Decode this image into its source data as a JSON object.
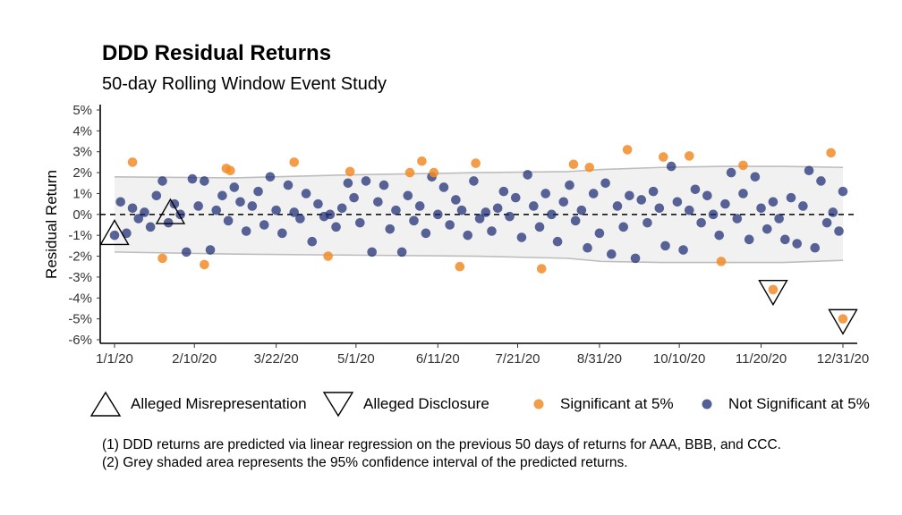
{
  "chart_data": {
    "type": "scatter",
    "title": "DDD Residual Returns",
    "subtitle": "50-day Rolling Window Event Study",
    "xlabel": "",
    "ylabel": "Residual Return",
    "x_ticks": [
      "1/1/20",
      "2/10/20",
      "3/22/20",
      "5/1/20",
      "6/11/20",
      "7/21/20",
      "8/31/20",
      "10/10/20",
      "11/20/20",
      "12/31/20"
    ],
    "y_ticks": [
      "5%",
      "4%",
      "3%",
      "2%",
      "1%",
      "0%",
      "-1%",
      "-2%",
      "-3%",
      "-4%",
      "-5%",
      "-6%"
    ],
    "x_range": [
      "2020-01-01",
      "2020-12-31"
    ],
    "ylim": [
      -6,
      5
    ],
    "grid": false,
    "legend": [
      {
        "name": "Alleged Misrepresentation",
        "marker": "triangle-up"
      },
      {
        "name": "Alleged Disclosure",
        "marker": "triangle-down"
      },
      {
        "name": "Significant at 5%",
        "marker": "dot",
        "color": "#f28c28"
      },
      {
        "name": "Not Significant at 5%",
        "marker": "dot",
        "color": "#1b2a73"
      }
    ],
    "confidence_band": {
      "dates": [
        "2020-01-01",
        "2020-03-01",
        "2020-05-01",
        "2020-07-01",
        "2020-08-15",
        "2020-09-01",
        "2020-10-01",
        "2020-11-01",
        "2020-12-01",
        "2020-12-31"
      ],
      "upper": [
        1.8,
        1.75,
        1.9,
        2.0,
        2.05,
        2.15,
        2.25,
        2.3,
        2.3,
        2.25
      ],
      "lower": [
        -1.8,
        -1.9,
        -1.95,
        -2.0,
        -2.1,
        -2.25,
        -2.3,
        -2.3,
        -2.3,
        -2.2
      ]
    },
    "series": [
      {
        "name": "Significant at 5%",
        "points": [
          [
            "2020-01-10",
            2.5
          ],
          [
            "2020-01-25",
            -2.1
          ],
          [
            "2020-02-15",
            -2.4
          ],
          [
            "2020-02-26",
            2.2
          ],
          [
            "2020-02-28",
            2.1
          ],
          [
            "2020-03-31",
            2.5
          ],
          [
            "2020-04-17",
            -2.0
          ],
          [
            "2020-04-28",
            2.05
          ],
          [
            "2020-05-28",
            2.0
          ],
          [
            "2020-06-03",
            2.55
          ],
          [
            "2020-06-09",
            2.0
          ],
          [
            "2020-06-22",
            -2.5
          ],
          [
            "2020-06-30",
            2.45
          ],
          [
            "2020-08-02",
            -2.6
          ],
          [
            "2020-08-18",
            2.4
          ],
          [
            "2020-08-26",
            2.25
          ],
          [
            "2020-09-14",
            3.1
          ],
          [
            "2020-10-02",
            2.75
          ],
          [
            "2020-10-15",
            2.8
          ],
          [
            "2020-10-31",
            -2.25
          ],
          [
            "2020-11-11",
            2.35
          ],
          [
            "2020-11-26",
            -3.6
          ],
          [
            "2020-12-25",
            2.95
          ],
          [
            "2020-12-31",
            -5.0
          ]
        ]
      },
      {
        "name": "Not Significant at 5%",
        "points": [
          [
            "2020-01-01",
            -1.0
          ],
          [
            "2020-01-04",
            0.6
          ],
          [
            "2020-01-07",
            -0.9
          ],
          [
            "2020-01-10",
            0.3
          ],
          [
            "2020-01-13",
            -0.2
          ],
          [
            "2020-01-16",
            0.1
          ],
          [
            "2020-01-19",
            -0.6
          ],
          [
            "2020-01-22",
            0.9
          ],
          [
            "2020-01-25",
            1.6
          ],
          [
            "2020-01-28",
            -0.4
          ],
          [
            "2020-01-31",
            0.5
          ],
          [
            "2020-02-03",
            0.0
          ],
          [
            "2020-02-06",
            -1.8
          ],
          [
            "2020-02-09",
            1.7
          ],
          [
            "2020-02-12",
            0.4
          ],
          [
            "2020-02-15",
            1.6
          ],
          [
            "2020-02-18",
            -1.7
          ],
          [
            "2020-02-21",
            0.2
          ],
          [
            "2020-02-24",
            0.9
          ],
          [
            "2020-02-27",
            -0.3
          ],
          [
            "2020-03-01",
            1.3
          ],
          [
            "2020-03-04",
            0.6
          ],
          [
            "2020-03-07",
            -0.8
          ],
          [
            "2020-03-10",
            0.4
          ],
          [
            "2020-03-13",
            1.1
          ],
          [
            "2020-03-16",
            -0.5
          ],
          [
            "2020-03-19",
            1.8
          ],
          [
            "2020-03-22",
            0.2
          ],
          [
            "2020-03-25",
            -0.9
          ],
          [
            "2020-03-28",
            1.4
          ],
          [
            "2020-03-31",
            0.1
          ],
          [
            "2020-04-03",
            -0.2
          ],
          [
            "2020-04-06",
            1.0
          ],
          [
            "2020-04-09",
            -1.3
          ],
          [
            "2020-04-12",
            0.5
          ],
          [
            "2020-04-15",
            -0.1
          ],
          [
            "2020-04-18",
            0.0
          ],
          [
            "2020-04-21",
            -0.6
          ],
          [
            "2020-04-24",
            0.3
          ],
          [
            "2020-04-27",
            1.5
          ],
          [
            "2020-04-30",
            0.8
          ],
          [
            "2020-05-03",
            -0.4
          ],
          [
            "2020-05-06",
            1.6
          ],
          [
            "2020-05-09",
            -1.8
          ],
          [
            "2020-05-12",
            0.6
          ],
          [
            "2020-05-15",
            1.4
          ],
          [
            "2020-05-18",
            -0.7
          ],
          [
            "2020-05-21",
            0.2
          ],
          [
            "2020-05-24",
            -1.8
          ],
          [
            "2020-05-27",
            0.9
          ],
          [
            "2020-05-30",
            -0.3
          ],
          [
            "2020-06-02",
            0.4
          ],
          [
            "2020-06-05",
            -0.9
          ],
          [
            "2020-06-08",
            1.8
          ],
          [
            "2020-06-11",
            0.0
          ],
          [
            "2020-06-14",
            1.3
          ],
          [
            "2020-06-17",
            -0.5
          ],
          [
            "2020-06-20",
            0.7
          ],
          [
            "2020-06-23",
            0.2
          ],
          [
            "2020-06-26",
            -1.0
          ],
          [
            "2020-06-29",
            1.6
          ],
          [
            "2020-07-02",
            -0.2
          ],
          [
            "2020-07-05",
            0.1
          ],
          [
            "2020-07-08",
            -0.8
          ],
          [
            "2020-07-11",
            0.3
          ],
          [
            "2020-07-14",
            1.1
          ],
          [
            "2020-07-17",
            -0.1
          ],
          [
            "2020-07-20",
            0.8
          ],
          [
            "2020-07-23",
            -1.1
          ],
          [
            "2020-07-26",
            1.9
          ],
          [
            "2020-07-29",
            0.4
          ],
          [
            "2020-08-01",
            -0.6
          ],
          [
            "2020-08-04",
            1.0
          ],
          [
            "2020-08-07",
            0.0
          ],
          [
            "2020-08-10",
            -1.3
          ],
          [
            "2020-08-13",
            0.6
          ],
          [
            "2020-08-16",
            1.4
          ],
          [
            "2020-08-19",
            -0.3
          ],
          [
            "2020-08-22",
            0.2
          ],
          [
            "2020-08-25",
            -1.6
          ],
          [
            "2020-08-28",
            1.0
          ],
          [
            "2020-08-31",
            -0.9
          ],
          [
            "2020-09-03",
            1.5
          ],
          [
            "2020-09-06",
            -1.9
          ],
          [
            "2020-09-09",
            0.4
          ],
          [
            "2020-09-12",
            -0.6
          ],
          [
            "2020-09-15",
            0.9
          ],
          [
            "2020-09-18",
            -2.1
          ],
          [
            "2020-09-21",
            0.7
          ],
          [
            "2020-09-24",
            -0.4
          ],
          [
            "2020-09-27",
            1.1
          ],
          [
            "2020-09-30",
            0.3
          ],
          [
            "2020-10-03",
            -1.5
          ],
          [
            "2020-10-06",
            2.3
          ],
          [
            "2020-10-09",
            0.6
          ],
          [
            "2020-10-12",
            -1.7
          ],
          [
            "2020-10-15",
            0.2
          ],
          [
            "2020-10-18",
            1.2
          ],
          [
            "2020-10-21",
            -0.4
          ],
          [
            "2020-10-24",
            0.9
          ],
          [
            "2020-10-27",
            0.0
          ],
          [
            "2020-10-30",
            -1.0
          ],
          [
            "2020-11-02",
            0.5
          ],
          [
            "2020-11-05",
            2.0
          ],
          [
            "2020-11-08",
            -0.2
          ],
          [
            "2020-11-11",
            1.0
          ],
          [
            "2020-11-14",
            -1.2
          ],
          [
            "2020-11-17",
            1.8
          ],
          [
            "2020-11-20",
            0.3
          ],
          [
            "2020-11-23",
            -0.7
          ],
          [
            "2020-11-26",
            0.6
          ],
          [
            "2020-11-29",
            -0.2
          ],
          [
            "2020-12-02",
            -1.2
          ],
          [
            "2020-12-05",
            0.8
          ],
          [
            "2020-12-08",
            -1.4
          ],
          [
            "2020-12-11",
            0.4
          ],
          [
            "2020-12-14",
            2.1
          ],
          [
            "2020-12-17",
            -1.6
          ],
          [
            "2020-12-20",
            1.6
          ],
          [
            "2020-12-23",
            -0.4
          ],
          [
            "2020-12-26",
            0.1
          ],
          [
            "2020-12-29",
            -0.8
          ],
          [
            "2020-12-31",
            1.1
          ]
        ]
      }
    ],
    "event_markers": [
      {
        "type": "Alleged Misrepresentation",
        "date": "2020-01-01",
        "y": -1.0
      },
      {
        "type": "Alleged Misrepresentation",
        "date": "2020-01-29",
        "y": 0.0
      },
      {
        "type": "Alleged Disclosure",
        "date": "2020-11-26",
        "y": -3.6
      },
      {
        "type": "Alleged Disclosure",
        "date": "2020-12-31",
        "y": -5.0
      }
    ]
  },
  "legend_labels": {
    "misrep": "Alleged Misrepresentation",
    "disclosure": "Alleged Disclosure",
    "significant": "Significant at 5%",
    "not_significant": "Not Significant at 5%"
  },
  "notes": [
    "(1)  DDD returns are predicted via linear regression on the previous 50 days of returns for AAA, BBB, and CCC.",
    "(2)  Grey shaded area represents the 95% confidence interval of the predicted returns."
  ]
}
